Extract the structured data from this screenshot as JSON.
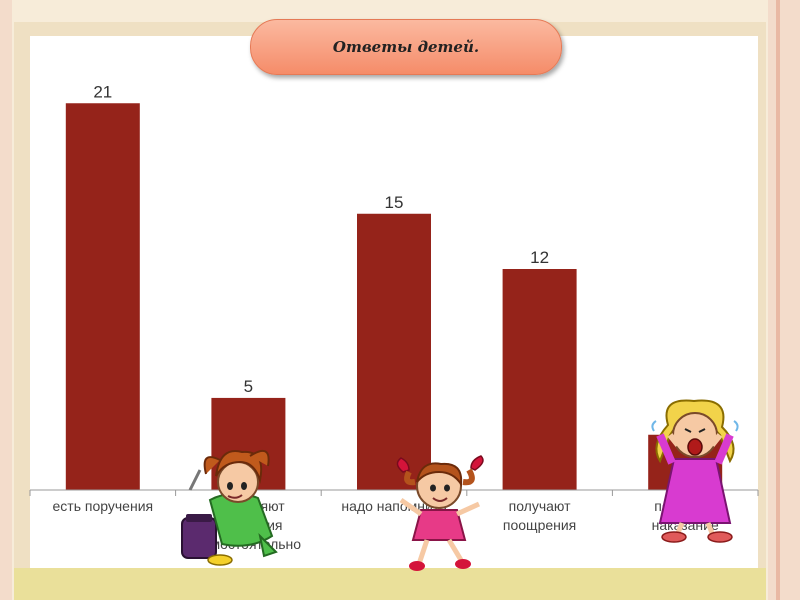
{
  "slide": {
    "title": "Ответы детей."
  },
  "chart_data": {
    "type": "bar",
    "categories": [
      [
        "есть поручения"
      ],
      [
        "выполняют",
        "поручения",
        "самостоятельно"
      ],
      [
        "надо напомнить"
      ],
      [
        "получают",
        "поощрения"
      ],
      [
        "получают",
        "наказание"
      ]
    ],
    "values": [
      21,
      5,
      15,
      12,
      3
    ],
    "value_labels": [
      "21",
      "5",
      "15",
      "12",
      ""
    ],
    "ylim": [
      0,
      24
    ],
    "grid": false,
    "legend": "none",
    "colors": {
      "bar": "#95231a",
      "plot_bg": "#ffffff",
      "frame": "#f0e2c4",
      "page_bg": "#f7ecd9",
      "bottom_strip": "#eae09a",
      "title_pill": "#f79b79"
    }
  },
  "decorations": [
    "girl-with-jar-illustration",
    "dancing-girl-illustration",
    "crying-girl-illustration"
  ]
}
